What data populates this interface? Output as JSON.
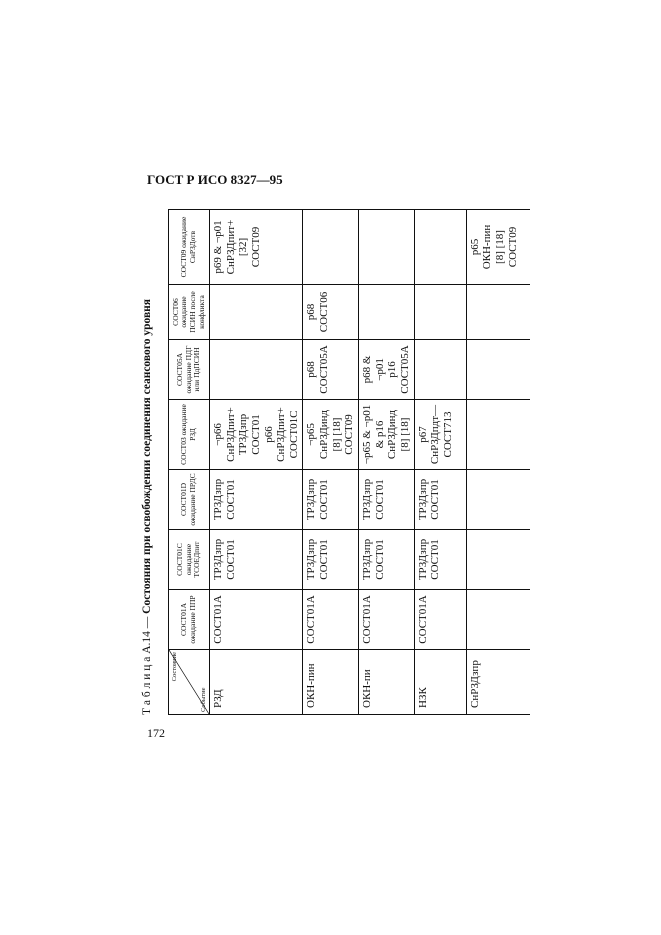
{
  "doc_header": "ГОСТ Р ИСО 8327—95",
  "page_number": "172",
  "caption": {
    "prefix": "Т а б л и ц а  А.14 — ",
    "title": "Состояния при освобождении соединения сеансового уровня"
  },
  "table": {
    "corner": {
      "state": "Состояние",
      "event": "Событие"
    },
    "columns": [
      "СОСТ01А ожидание ППР",
      "СОСТ01С ожидание ТСОЕДпит",
      "СОСТ01D ожидание ПРДС",
      "СОСТ03 ожидание РЗД",
      "СОСТ05А ожидание ПДГ или ПдПСИН",
      "СОСТ06 ожидание ПСИН после конфликта",
      "СОСТ09 ожидание СнРЗДотв"
    ],
    "rows": [
      {
        "event": "РЗД",
        "cells": [
          [
            "СОСТ01А"
          ],
          [
            "ТРЗДзпр",
            "СОСТ01"
          ],
          [
            "ТРЗДзпр",
            "СОСТ01"
          ],
          [
            "¬p66",
            "СнРЗДпит+",
            "ТРЗДзпр",
            "СОСТ01",
            "p66",
            "СнРЗДпит+",
            "СОСТ01С"
          ],
          [],
          [],
          [
            "p69 & ¬p01",
            "СнРЗДпит+",
            "[32]",
            "СОСТ09"
          ]
        ]
      },
      {
        "event": "ОКН-пин",
        "cells": [
          [
            "СОСТ01А"
          ],
          [
            "ТРЗДзпр",
            "СОСТ01"
          ],
          [
            "ТРЗДзпр",
            "СОСТ01"
          ],
          [
            "¬p65",
            "СнРЗДинд",
            "[8] [18]",
            "СОСТ09"
          ],
          [
            "p68",
            "СОСТ05А"
          ],
          [
            "p68",
            "СОСТ06"
          ],
          []
        ]
      },
      {
        "event": "ОКН-пи",
        "cells": [
          [
            "СОСТ01А"
          ],
          [
            "ТРЗДзпр",
            "СОСТ01"
          ],
          [
            "ТРЗДзпр",
            "СОСТ01"
          ],
          [
            "¬p65 & ¬p01",
            "& p16",
            "СнРЗДинд",
            "[8] [18]"
          ],
          [
            "p68 & ¬p01",
            "p16",
            "СОСТ05А"
          ],
          [],
          []
        ]
      },
      {
        "event": "НЗК",
        "cells": [
          [
            "СОСТ01А"
          ],
          [
            "ТРЗДзпр",
            "СОСТ01"
          ],
          [
            "ТРЗДзпр",
            "СОСТ01"
          ],
          [
            "p67",
            "СнРЗДпдт—",
            "СОСТ713"
          ],
          [],
          [],
          []
        ]
      },
      {
        "event": "СнРЗДзпр",
        "cells": [
          [],
          [],
          [],
          [],
          [],
          [],
          [
            "p65",
            "ОКН-пин",
            "[8] [18]",
            "СОСТ09"
          ]
        ]
      }
    ]
  }
}
